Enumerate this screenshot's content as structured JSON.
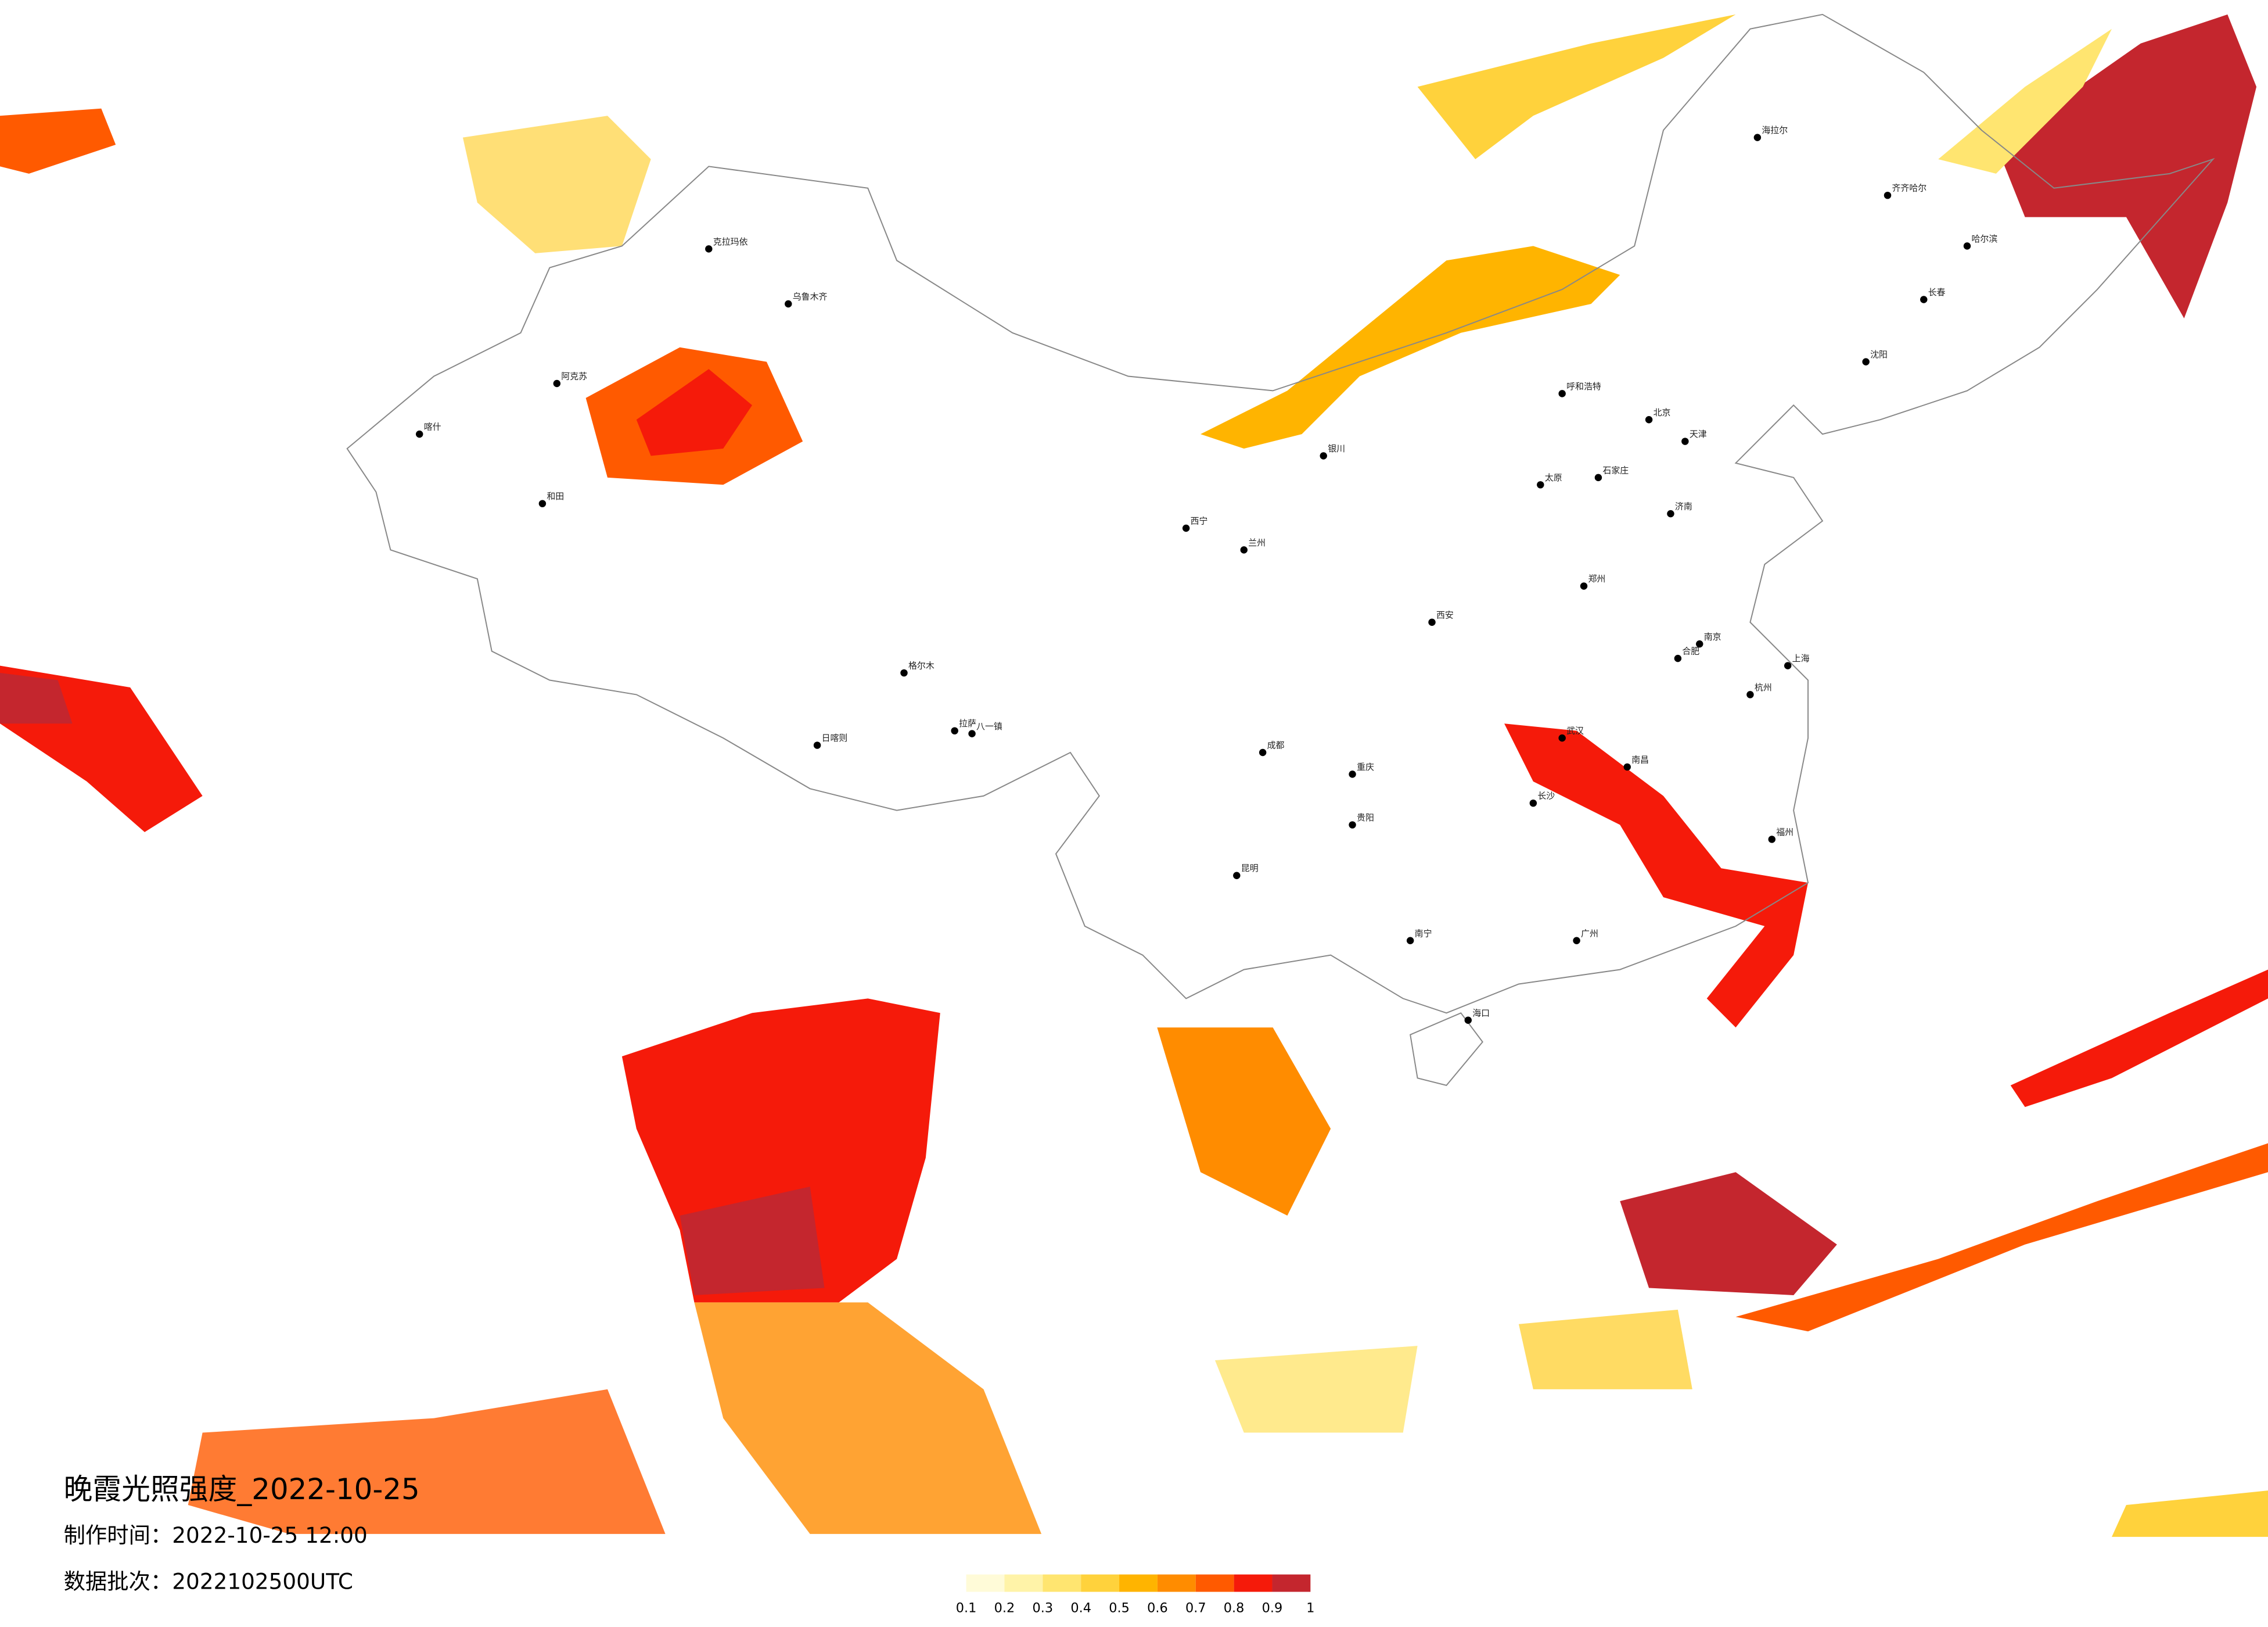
{
  "header": {
    "title": "晚霞光照强度_2022-10-25",
    "made_time": "制作时间：2022-10-25 12:00",
    "batch": "数据批次：2022102500UTC"
  },
  "legend": {
    "colors": [
      "#fffbd8",
      "#fff3a8",
      "#ffe570",
      "#ffd23c",
      "#ffb400",
      "#ff8c00",
      "#ff5a00",
      "#f51a0a",
      "#c4262e"
    ],
    "ticks": [
      0.1,
      0.2,
      0.3,
      0.4,
      0.5,
      0.6,
      0.7,
      0.8,
      0.9,
      1
    ]
  },
  "cities": [
    {
      "name": "北京"
    },
    {
      "name": "天津"
    },
    {
      "name": "石家庄"
    },
    {
      "name": "太原"
    },
    {
      "name": "呼和浩特"
    },
    {
      "name": "沈阳"
    },
    {
      "name": "长春"
    },
    {
      "name": "哈尔滨"
    },
    {
      "name": "齐齐哈尔"
    },
    {
      "name": "海拉尔"
    },
    {
      "name": "济南"
    },
    {
      "name": "郑州"
    },
    {
      "name": "西安"
    },
    {
      "name": "兰州"
    },
    {
      "name": "西宁"
    },
    {
      "name": "银川"
    },
    {
      "name": "成都"
    },
    {
      "name": "重庆"
    },
    {
      "name": "贵阳"
    },
    {
      "name": "昆明"
    },
    {
      "name": "南宁"
    },
    {
      "name": "海口"
    },
    {
      "name": "广州"
    },
    {
      "name": "长沙"
    },
    {
      "name": "武汉"
    },
    {
      "name": "南昌"
    },
    {
      "name": "福州"
    },
    {
      "name": "杭州"
    },
    {
      "name": "南京"
    },
    {
      "name": "合肥"
    },
    {
      "name": "上海"
    },
    {
      "name": "乌鲁木齐"
    },
    {
      "name": "克拉玛依"
    },
    {
      "name": "阿克苏"
    },
    {
      "name": "喀什"
    },
    {
      "name": "和田"
    },
    {
      "name": "拉萨"
    },
    {
      "name": "日喀则"
    },
    {
      "name": "八一镇"
    },
    {
      "name": "格尔木"
    }
  ]
}
